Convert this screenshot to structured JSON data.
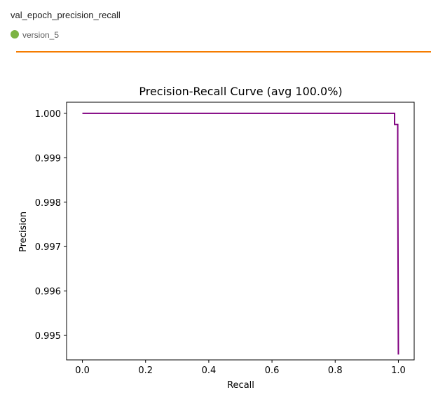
{
  "card": {
    "title": "val_epoch_precision_recall",
    "run_name": "version_5",
    "run_color": "#7cb342",
    "accent_color": "#f57c00"
  },
  "chart_data": {
    "type": "line",
    "title": "Precision-Recall Curve (avg 100.0%)",
    "xlabel": "Recall",
    "ylabel": "Precision",
    "xlim": [
      -0.05,
      1.05
    ],
    "ylim": [
      0.99445,
      1.00025
    ],
    "xticks": [
      0.0,
      0.2,
      0.4,
      0.6,
      0.8,
      1.0
    ],
    "xtick_labels": [
      "0.0",
      "0.2",
      "0.4",
      "0.6",
      "0.8",
      "1.0"
    ],
    "yticks": [
      0.995,
      0.996,
      0.997,
      0.998,
      0.999,
      1.0
    ],
    "ytick_labels": [
      "0.995",
      "0.996",
      "0.997",
      "0.998",
      "0.999",
      "1.000"
    ],
    "grid": false,
    "series": [
      {
        "color": "#800080",
        "x": [
          0.0,
          0.988,
          0.988,
          0.998,
          0.998,
          1.0
        ],
        "y": [
          1.0,
          1.0,
          0.99975,
          0.99975,
          0.9988,
          0.99457
        ]
      }
    ]
  }
}
